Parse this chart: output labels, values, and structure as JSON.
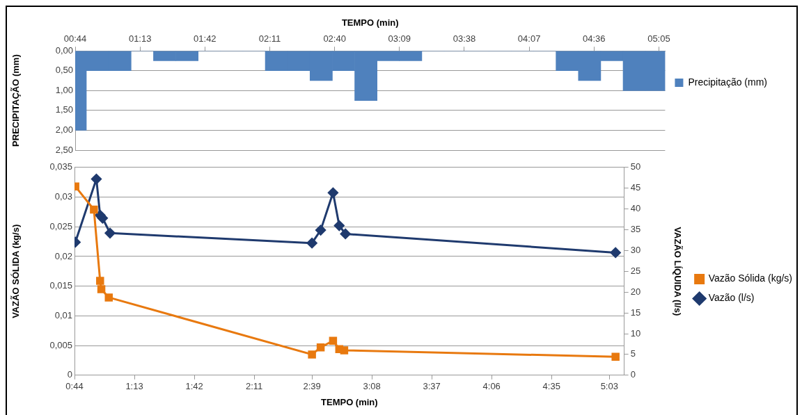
{
  "chart_data": [
    {
      "type": "bar",
      "xlabel": "TEMPO (min)",
      "ylabel": "PRECIPITAÇÃO (mm)",
      "x": [
        0.7333,
        0.9,
        1.0667,
        1.2333,
        1.4,
        1.5667,
        1.7333,
        1.9,
        2.0667,
        2.2333,
        2.4,
        2.5667,
        2.7333,
        2.9,
        3.0667,
        3.2333,
        3.4,
        3.5667,
        3.7333,
        3.9,
        4.0667,
        4.2333,
        4.4,
        4.5667,
        4.7333,
        4.9,
        5.0667
      ],
      "series": [
        {
          "name": "Precipitação (mm)",
          "color": "#4f81bd",
          "values": [
            2,
            0.5,
            0.5,
            0,
            0.25,
            0.25,
            0,
            0,
            0,
            0.5,
            0.5,
            0.75,
            0.5,
            1.25,
            0.25,
            0.25,
            0,
            0,
            0,
            0,
            0,
            0,
            0.5,
            0.75,
            0.25,
            1,
            1
          ]
        }
      ],
      "xlim": [
        0.7333,
        5.13
      ],
      "xticks": [
        {
          "value": 0.7333,
          "label": "00:44"
        },
        {
          "value": 1.2167,
          "label": "01:13"
        },
        {
          "value": 1.7,
          "label": "01:42"
        },
        {
          "value": 2.1833,
          "label": "02:11"
        },
        {
          "value": 2.6667,
          "label": "02:40"
        },
        {
          "value": 3.15,
          "label": "03:09"
        },
        {
          "value": 3.6333,
          "label": "03:38"
        },
        {
          "value": 4.1167,
          "label": "04:07"
        },
        {
          "value": 4.6,
          "label": "04:36"
        },
        {
          "value": 5.0833,
          "label": "05:05"
        }
      ],
      "ylim": [
        2.5,
        0
      ],
      "yticks": [
        {
          "value": 0,
          "label": "0,00"
        },
        {
          "value": 0.5,
          "label": "0,50"
        },
        {
          "value": 1,
          "label": "1,00"
        },
        {
          "value": 1.5,
          "label": "1,50"
        },
        {
          "value": 2,
          "label": "2,00"
        },
        {
          "value": 2.5,
          "label": "2,50"
        }
      ],
      "grid": "y",
      "legend": "right"
    },
    {
      "type": "line",
      "xlabel": "TEMPO (min)",
      "ylabel": "VAZÃO SÓLIDA (kg/s)",
      "y2label": "VAZÃO LÍQUIDA (l/s)",
      "series": [
        {
          "name": "Vazão Sólida (kg/s)",
          "color": "#e8790f",
          "marker": "square",
          "x": [
            0.74,
            0.89,
            0.94,
            0.95,
            1.01,
            2.65,
            2.72,
            2.82,
            2.87,
            2.91,
            5.1
          ],
          "values": [
            0.0318,
            0.0279,
            0.0159,
            0.0145,
            0.0131,
            0.0035,
            0.0047,
            0.0058,
            0.0044,
            0.0042,
            0.0031
          ]
        },
        {
          "name": "Vazão (l/s)",
          "color": "#1f3a6e",
          "marker": "diamond",
          "axis": "y2",
          "x": [
            0.74,
            0.91,
            0.94,
            0.96,
            1.02,
            2.65,
            2.72,
            2.82,
            2.87,
            2.92,
            5.1
          ],
          "values": [
            32,
            47.2,
            38.5,
            37.8,
            34.2,
            31.8,
            34.9,
            43.9,
            36,
            34,
            29.5
          ]
        }
      ],
      "xlim": [
        0.7333,
        5.17
      ],
      "xticks": [
        {
          "value": 0.7333,
          "label": "0:44"
        },
        {
          "value": 1.2167,
          "label": "1:13"
        },
        {
          "value": 1.7,
          "label": "1:42"
        },
        {
          "value": 2.1833,
          "label": "2:11"
        },
        {
          "value": 2.65,
          "label": "2:39"
        },
        {
          "value": 3.1333,
          "label": "3:08"
        },
        {
          "value": 3.6167,
          "label": "3:37"
        },
        {
          "value": 4.1,
          "label": "4:06"
        },
        {
          "value": 4.5833,
          "label": "4:35"
        },
        {
          "value": 5.05,
          "label": "5:03"
        }
      ],
      "ylim": [
        0,
        0.035
      ],
      "yticks": [
        {
          "value": 0,
          "label": "0"
        },
        {
          "value": 0.005,
          "label": "0,005"
        },
        {
          "value": 0.01,
          "label": "0,01"
        },
        {
          "value": 0.015,
          "label": "0,015"
        },
        {
          "value": 0.02,
          "label": "0,02"
        },
        {
          "value": 0.025,
          "label": "0,025"
        },
        {
          "value": 0.03,
          "label": "0,03"
        },
        {
          "value": 0.035,
          "label": "0,035"
        }
      ],
      "y2lim": [
        0,
        50
      ],
      "y2ticks": [
        0,
        5,
        10,
        15,
        20,
        25,
        30,
        35,
        40,
        45,
        50
      ],
      "grid": "y",
      "legend": "right"
    }
  ]
}
